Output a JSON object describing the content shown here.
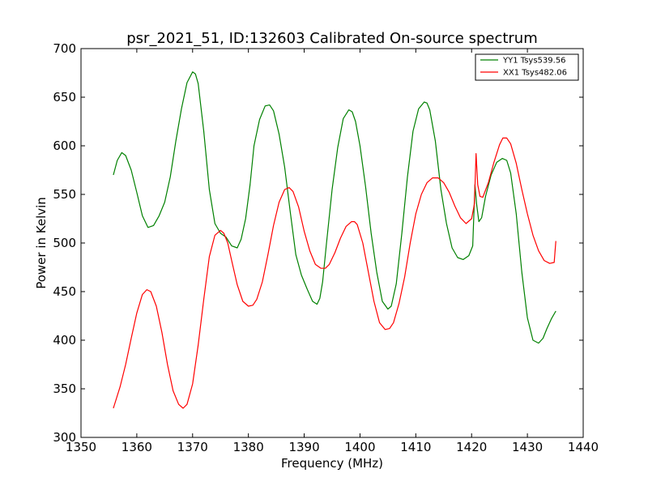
{
  "chart_data": {
    "type": "line",
    "title": "psr_2021_51, ID:132603 Calibrated On-source spectrum",
    "xlabel": "Frequency (MHz)",
    "ylabel": "Power in Kelvin",
    "xlim": [
      1350,
      1440
    ],
    "ylim": [
      300,
      700
    ],
    "xticks": [
      1350,
      1360,
      1370,
      1380,
      1390,
      1400,
      1410,
      1420,
      1430,
      1440
    ],
    "yticks": [
      300,
      350,
      400,
      450,
      500,
      550,
      600,
      650,
      700
    ],
    "grid": false,
    "legend_position": "top-right",
    "series": [
      {
        "name": "YY1 Tsys539.56",
        "color": "#008000",
        "x": [
          1355.8,
          1356.5,
          1357.3,
          1358.0,
          1359.0,
          1360.0,
          1361.0,
          1362.0,
          1363.0,
          1364.0,
          1365.0,
          1366.0,
          1367.0,
          1368.0,
          1369.0,
          1370.0,
          1370.5,
          1371.0,
          1372.0,
          1373.0,
          1374.0,
          1375.0,
          1376.0,
          1377.0,
          1378.0,
          1378.7,
          1379.5,
          1380.3,
          1381.0,
          1382.0,
          1383.0,
          1383.8,
          1384.5,
          1385.5,
          1386.5,
          1387.5,
          1388.5,
          1389.5,
          1390.5,
          1391.5,
          1392.3,
          1392.8,
          1393.3,
          1394.0,
          1395.0,
          1396.0,
          1397.0,
          1398.0,
          1398.6,
          1399.2,
          1400.0,
          1401.0,
          1402.0,
          1403.0,
          1404.0,
          1405.0,
          1405.6,
          1406.5,
          1407.5,
          1408.5,
          1409.5,
          1410.5,
          1411.5,
          1412.0,
          1412.5,
          1413.5,
          1414.5,
          1415.5,
          1416.5,
          1417.5,
          1418.5,
          1419.5,
          1420.2,
          1420.6,
          1420.9,
          1421.3,
          1421.8,
          1422.5,
          1423.5,
          1424.5,
          1425.5,
          1426.3,
          1427.0,
          1428.0,
          1429.0,
          1430.0,
          1431.0,
          1432.0,
          1432.8,
          1433.5,
          1434.3,
          1435.1
        ],
        "values": [
          570,
          585,
          593,
          590,
          575,
          552,
          528,
          516,
          518,
          528,
          542,
          568,
          605,
          638,
          665,
          676,
          674,
          664,
          615,
          555,
          520,
          510,
          506,
          497,
          495,
          504,
          525,
          560,
          600,
          627,
          641,
          642,
          636,
          612,
          578,
          532,
          488,
          467,
          453,
          440,
          437,
          443,
          460,
          500,
          555,
          598,
          628,
          637,
          635,
          625,
          600,
          558,
          510,
          470,
          440,
          432,
          435,
          458,
          510,
          568,
          615,
          638,
          645,
          644,
          637,
          605,
          555,
          520,
          495,
          485,
          483,
          487,
          497,
          560,
          540,
          522,
          526,
          548,
          570,
          583,
          587,
          585,
          572,
          530,
          470,
          423,
          400,
          397,
          402,
          412,
          422,
          430
        ]
      },
      {
        "name": "XX1 Tsys482.06",
        "color": "#ff0000",
        "x": [
          1355.8,
          1357.0,
          1358.0,
          1359.0,
          1360.0,
          1361.0,
          1361.8,
          1362.5,
          1363.5,
          1364.5,
          1365.5,
          1366.5,
          1367.5,
          1368.3,
          1369.0,
          1370.0,
          1371.0,
          1372.0,
          1373.0,
          1374.0,
          1375.0,
          1375.6,
          1376.3,
          1377.0,
          1378.0,
          1379.0,
          1380.0,
          1380.8,
          1381.5,
          1382.5,
          1383.5,
          1384.5,
          1385.5,
          1386.5,
          1387.3,
          1388.0,
          1389.0,
          1390.0,
          1391.0,
          1392.0,
          1393.0,
          1393.8,
          1394.5,
          1395.5,
          1396.5,
          1397.5,
          1398.5,
          1399.0,
          1399.5,
          1400.5,
          1401.5,
          1402.5,
          1403.5,
          1404.5,
          1405.3,
          1406.0,
          1407.0,
          1408.0,
          1409.0,
          1410.0,
          1411.0,
          1412.0,
          1413.0,
          1414.0,
          1415.0,
          1416.0,
          1417.0,
          1418.0,
          1419.0,
          1420.0,
          1420.5,
          1420.8,
          1421.1,
          1421.5,
          1422.0,
          1423.0,
          1424.0,
          1425.0,
          1425.6,
          1426.3,
          1427.0,
          1428.0,
          1429.0,
          1430.0,
          1431.0,
          1432.0,
          1433.0,
          1434.0,
          1434.8,
          1435.1
        ],
        "values": [
          330,
          352,
          375,
          402,
          428,
          447,
          452,
          450,
          435,
          408,
          375,
          348,
          334,
          330,
          334,
          355,
          395,
          442,
          486,
          508,
          513,
          510,
          500,
          482,
          457,
          440,
          435,
          436,
          442,
          460,
          488,
          518,
          542,
          555,
          557,
          553,
          537,
          512,
          492,
          478,
          474,
          474,
          478,
          490,
          505,
          517,
          522,
          522,
          519,
          500,
          470,
          440,
          418,
          411,
          412,
          418,
          438,
          465,
          500,
          530,
          550,
          562,
          567,
          567,
          562,
          552,
          538,
          526,
          520,
          525,
          540,
          592,
          560,
          548,
          547,
          562,
          583,
          601,
          608,
          608,
          602,
          582,
          555,
          530,
          508,
          492,
          482,
          479,
          480,
          502
        ]
      }
    ]
  }
}
